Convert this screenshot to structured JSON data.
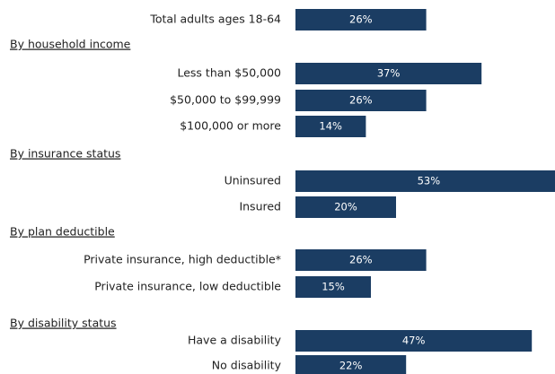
{
  "chart_data": {
    "type": "bar",
    "orientation": "horizontal",
    "color": "#1b3d63",
    "groups": [
      {
        "categories": [
          "Total adults ages 18-64"
        ],
        "values": [
          26
        ],
        "value_labels": [
          "26%"
        ]
      },
      {
        "name": "By household income",
        "categories": [
          "Less than $50,000",
          "$50,000 to $99,999",
          "$100,000 or more"
        ],
        "values": [
          37,
          26,
          14
        ],
        "value_labels": [
          "37%",
          "26%",
          "14%"
        ]
      },
      {
        "name": "By insurance status",
        "categories": [
          "Uninsured",
          "Insured"
        ],
        "values": [
          53,
          20
        ],
        "value_labels": [
          "53%",
          "20%"
        ]
      },
      {
        "name": "By plan deductible",
        "categories": [
          "Private insurance, high deductible*",
          "Private insurance, low deductible"
        ],
        "values": [
          26,
          15
        ],
        "value_labels": [
          "26%",
          "15%"
        ]
      },
      {
        "name": "By disability status",
        "categories": [
          "Have a disability",
          "No disability"
        ],
        "values": [
          47,
          22
        ],
        "value_labels": [
          "47%",
          "22%"
        ]
      }
    ]
  }
}
